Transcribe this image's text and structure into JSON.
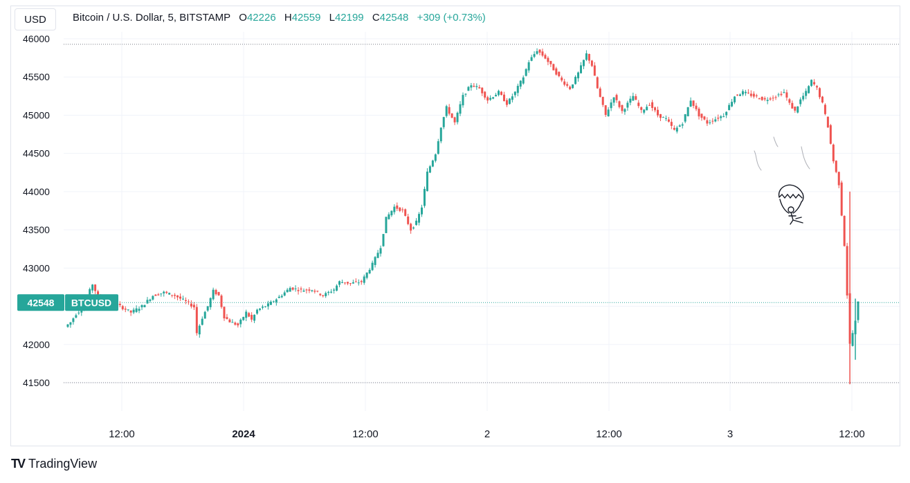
{
  "header": {
    "currency": "USD",
    "symbol_desc": "Bitcoin / U.S. Dollar, 5, BITSTAMP",
    "ohlc": [
      {
        "label": "O",
        "value": "42226"
      },
      {
        "label": "H",
        "value": "42559"
      },
      {
        "label": "L",
        "value": "42199"
      },
      {
        "label": "C",
        "value": "42548"
      }
    ],
    "change": "+309 (+0.73%)"
  },
  "brand": {
    "name": "TradingView",
    "logo": "TV"
  },
  "price_tag": {
    "price": "42548",
    "symbol": "BTCUSD"
  },
  "colors": {
    "up": "#26a69a",
    "down": "#ef5350",
    "grid": "#f0f3fa",
    "axis_text": "#131722"
  },
  "chart_data": {
    "type": "candlestick",
    "interval": "5",
    "exchange": "BITSTAMP",
    "ylim": [
      41100,
      46050
    ],
    "y_ticks": [
      41500,
      42000,
      42500,
      43000,
      43500,
      44000,
      44500,
      45000,
      45500,
      46000
    ],
    "x_ticks": [
      "12:00",
      "2024",
      "12:00",
      "2",
      "12:00",
      "3",
      "12:00"
    ],
    "current_price": 42548,
    "path_points": [
      [
        0,
        42230
      ],
      [
        2,
        42290
      ],
      [
        4,
        42400
      ],
      [
        6,
        42460
      ],
      [
        8,
        42620
      ],
      [
        10,
        42790
      ],
      [
        12,
        42620
      ],
      [
        16,
        42560
      ],
      [
        20,
        42500
      ],
      [
        24,
        42420
      ],
      [
        28,
        42500
      ],
      [
        32,
        42640
      ],
      [
        36,
        42680
      ],
      [
        40,
        42640
      ],
      [
        44,
        42560
      ],
      [
        47,
        42490
      ],
      [
        48,
        42150
      ],
      [
        50,
        42350
      ],
      [
        52,
        42500
      ],
      [
        54,
        42700
      ],
      [
        56,
        42640
      ],
      [
        58,
        42360
      ],
      [
        60,
        42300
      ],
      [
        63,
        42250
      ],
      [
        66,
        42420
      ],
      [
        68,
        42320
      ],
      [
        70,
        42450
      ],
      [
        74,
        42520
      ],
      [
        78,
        42620
      ],
      [
        82,
        42740
      ],
      [
        86,
        42710
      ],
      [
        90,
        42720
      ],
      [
        94,
        42640
      ],
      [
        96,
        42680
      ],
      [
        98,
        42720
      ],
      [
        100,
        42820
      ],
      [
        104,
        42800
      ],
      [
        108,
        42820
      ],
      [
        112,
        43050
      ],
      [
        115,
        43280
      ],
      [
        117,
        43650
      ],
      [
        120,
        43800
      ],
      [
        123,
        43750
      ],
      [
        126,
        43500
      ],
      [
        128,
        43600
      ],
      [
        130,
        43800
      ],
      [
        132,
        44250
      ],
      [
        135,
        44500
      ],
      [
        137,
        44850
      ],
      [
        139,
        45100
      ],
      [
        142,
        44900
      ],
      [
        145,
        45250
      ],
      [
        148,
        45400
      ],
      [
        151,
        45350
      ],
      [
        154,
        45200
      ],
      [
        158,
        45300
      ],
      [
        161,
        45150
      ],
      [
        164,
        45300
      ],
      [
        167,
        45500
      ],
      [
        169,
        45700
      ],
      [
        172,
        45850
      ],
      [
        175,
        45750
      ],
      [
        178,
        45600
      ],
      [
        181,
        45450
      ],
      [
        184,
        45350
      ],
      [
        187,
        45550
      ],
      [
        190,
        45800
      ],
      [
        192,
        45650
      ],
      [
        194,
        45350
      ],
      [
        197,
        45000
      ],
      [
        200,
        45250
      ],
      [
        203,
        45050
      ],
      [
        207,
        45250
      ],
      [
        210,
        45050
      ],
      [
        213,
        45150
      ],
      [
        216,
        45000
      ],
      [
        219,
        44950
      ],
      [
        222,
        44800
      ],
      [
        225,
        44900
      ],
      [
        228,
        45200
      ],
      [
        231,
        45000
      ],
      [
        234,
        44900
      ],
      [
        237,
        44950
      ],
      [
        240,
        45000
      ],
      [
        244,
        45250
      ],
      [
        247,
        45300
      ],
      [
        251,
        45250
      ],
      [
        255,
        45200
      ],
      [
        259,
        45250
      ],
      [
        262,
        45300
      ],
      [
        264,
        45150
      ],
      [
        266,
        45050
      ],
      [
        268,
        45200
      ],
      [
        270,
        45300
      ],
      [
        272,
        45450
      ],
      [
        274,
        45350
      ],
      [
        276,
        45150
      ],
      [
        278,
        44850
      ],
      [
        280,
        44400
      ],
      [
        282,
        44100
      ],
      [
        284,
        43300
      ],
      [
        286,
        42000
      ],
      [
        288,
        42300
      ],
      [
        289,
        42548
      ]
    ]
  }
}
